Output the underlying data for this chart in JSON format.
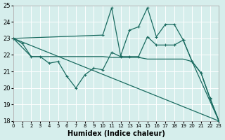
{
  "xlabel": "Humidex (Indice chaleur)",
  "bg_color": "#d6eeec",
  "grid_color": "#ffffff",
  "line_color": "#1a6b60",
  "xlim": [
    0,
    23
  ],
  "ylim": [
    18,
    25
  ],
  "xticks": [
    0,
    1,
    2,
    3,
    4,
    5,
    6,
    7,
    8,
    9,
    10,
    11,
    12,
    13,
    14,
    15,
    16,
    17,
    18,
    19,
    20,
    21,
    22,
    23
  ],
  "yticks": [
    18,
    19,
    20,
    21,
    22,
    23,
    24,
    25
  ],
  "line_jagged": {
    "x": [
      0,
      1,
      2,
      3,
      4,
      5,
      6,
      7,
      8,
      9,
      10,
      11,
      12,
      13,
      14,
      15,
      16,
      17,
      18,
      19,
      20,
      21,
      22,
      23
    ],
    "y": [
      23.0,
      22.7,
      21.9,
      21.9,
      21.5,
      21.6,
      20.7,
      20.0,
      20.8,
      21.2,
      21.1,
      22.15,
      21.9,
      21.9,
      21.9,
      23.1,
      22.6,
      22.6,
      22.6,
      22.9,
      21.6,
      20.9,
      19.4,
      18.0
    ]
  },
  "line_diagonal": {
    "x": [
      0,
      23
    ],
    "y": [
      23.0,
      18.0
    ]
  },
  "line_flat": {
    "x": [
      0,
      2,
      3,
      4,
      5,
      6,
      7,
      8,
      9,
      10,
      11,
      12,
      13,
      14,
      15,
      16,
      17,
      18,
      19,
      20,
      23
    ],
    "y": [
      23.0,
      21.9,
      21.9,
      21.9,
      21.9,
      21.9,
      21.9,
      21.9,
      21.9,
      21.9,
      21.85,
      21.85,
      21.85,
      21.85,
      21.75,
      21.75,
      21.75,
      21.75,
      21.75,
      21.6,
      18.0
    ]
  },
  "line_spike": {
    "x": [
      0,
      10,
      11,
      12,
      13,
      14,
      15,
      16,
      17,
      18,
      19,
      20,
      21,
      22,
      23
    ],
    "y": [
      23.0,
      23.2,
      24.85,
      21.95,
      23.5,
      23.7,
      24.85,
      23.1,
      23.85,
      23.85,
      22.9,
      21.6,
      20.9,
      19.35,
      18.0
    ]
  }
}
